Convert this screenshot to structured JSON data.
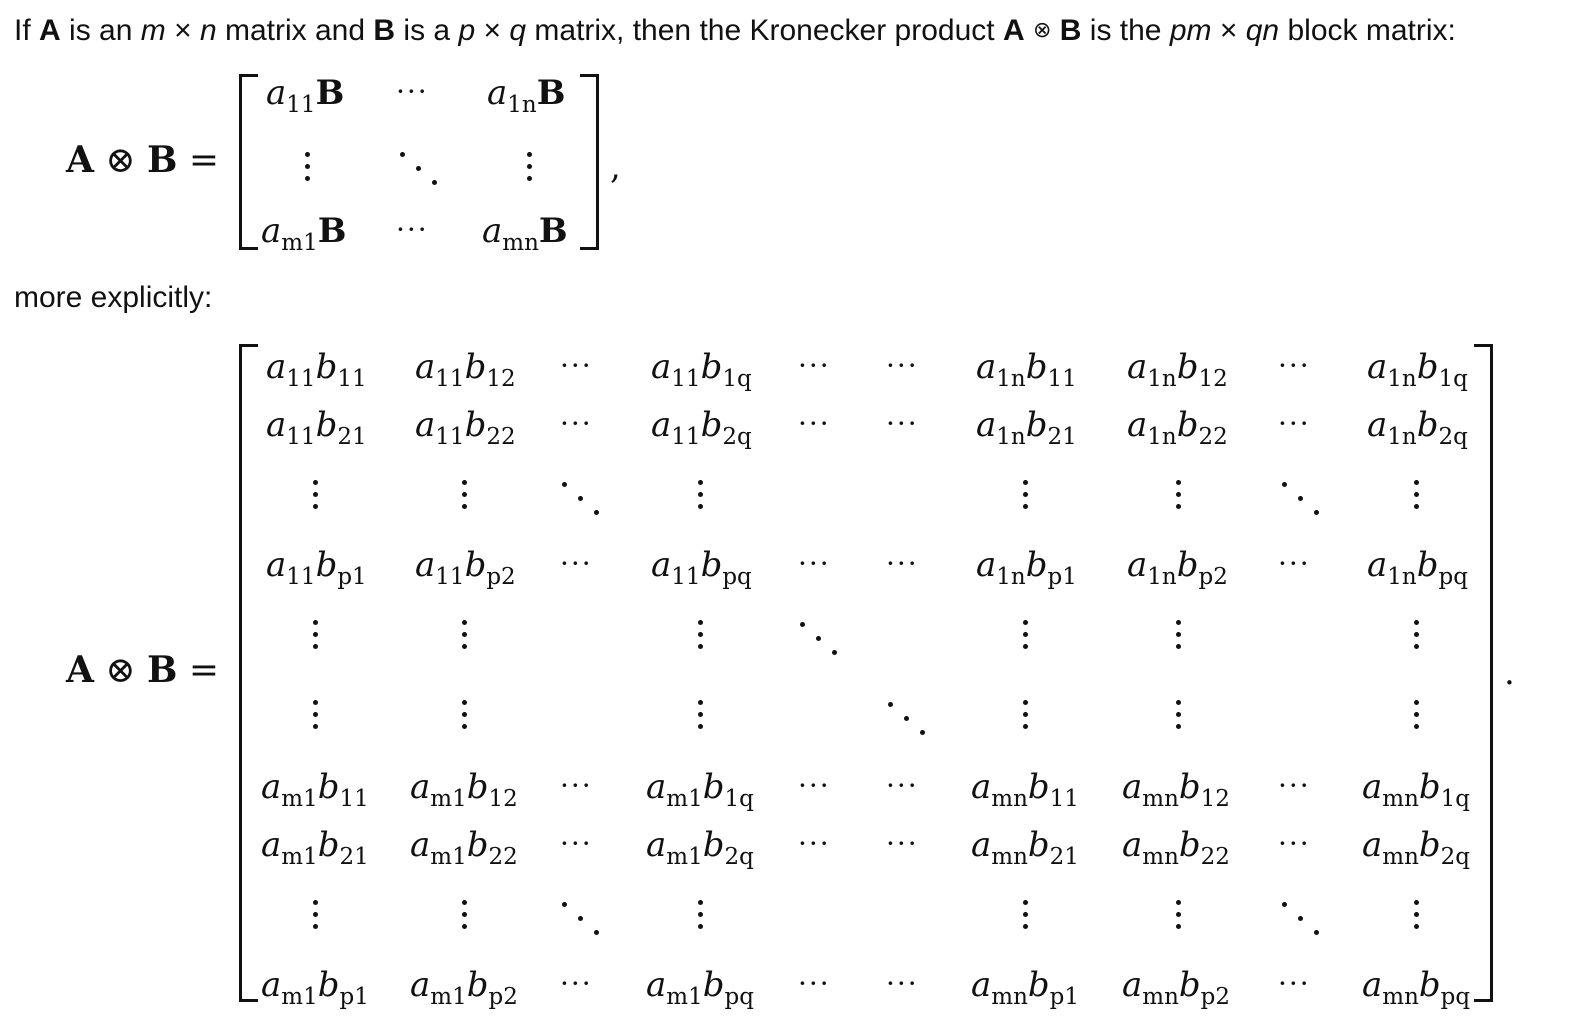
{
  "intro": {
    "w1": "If",
    "A": "A",
    "w2": "is an",
    "m": "m",
    "times1": "×",
    "n": "n",
    "w3": "matrix and",
    "B": "B",
    "w4": "is a",
    "p": "p",
    "times2": "×",
    "q": "q",
    "w5": "matrix, then the Kronecker product",
    "A2": "A",
    "otimes": "⊗",
    "B2": "B",
    "w6": "is the",
    "pm": "pm",
    "times3": "×",
    "qn": "qn",
    "w7": "block matrix:"
  },
  "lhs": {
    "A": "A",
    "otimes": "⊗",
    "B": "B",
    "eq": "="
  },
  "block_matrix": {
    "r1c1": {
      "a": "a",
      "sub": "11",
      "B": "B"
    },
    "r1c3": {
      "a": "a",
      "sub": "1n",
      "B": "B"
    },
    "r3c1": {
      "a": "a",
      "sub": "m1",
      "B": "B"
    },
    "r3c3": {
      "a": "a",
      "sub": "mn",
      "B": "B"
    },
    "hdots": "···",
    "comma": ","
  },
  "more_explicitly": "more explicitly:",
  "explicit": {
    "a11": "a",
    "a11_sub": "11",
    "a1n": "a",
    "a1n_sub": "1n",
    "am1": "a",
    "am1_sub": "m1",
    "amn": "a",
    "amn_sub": "mn",
    "b": "b",
    "sub_11": "11",
    "sub_12": "12",
    "sub_1q": "1q",
    "sub_21": "21",
    "sub_22": "22",
    "sub_2q": "2q",
    "sub_p1": "p1",
    "sub_p2": "p2",
    "sub_pq": "pq",
    "hdots": "···",
    "period": "."
  }
}
